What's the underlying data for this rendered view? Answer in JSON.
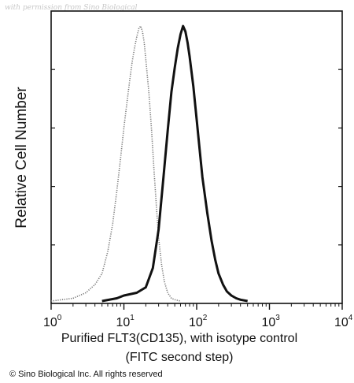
{
  "watermark": "with permission from Sino Biological",
  "copyright": "© Sino Biological Inc. All rights reserved",
  "chart_data": {
    "type": "line",
    "xscale": "log",
    "xlim": [
      1,
      10000
    ],
    "ylabel": "Relative Cell Number",
    "xlabel_line1": "Purified FLT3(CD135), with isotype control",
    "xlabel_line2": "(FITC second step)",
    "x_ticks": [
      {
        "base": "10",
        "exp": "0",
        "value": 1
      },
      {
        "base": "10",
        "exp": "1",
        "value": 10
      },
      {
        "base": "10",
        "exp": "2",
        "value": 100
      },
      {
        "base": "10",
        "exp": "3",
        "value": 1000
      },
      {
        "base": "10",
        "exp": "4",
        "value": 10000
      }
    ],
    "grid": false,
    "series": [
      {
        "style": "dotted",
        "color": "#777777",
        "x": [
          1,
          2,
          3,
          4,
          5,
          6,
          7,
          8,
          9,
          10,
          11,
          12,
          13,
          14,
          15,
          16,
          17,
          18,
          19,
          20,
          22,
          24,
          26,
          28,
          30,
          33,
          36,
          40,
          45,
          50,
          60
        ],
        "y": [
          0,
          1,
          3,
          6,
          10,
          18,
          28,
          40,
          52,
          63,
          72,
          80,
          87,
          92,
          96,
          99,
          100,
          98,
          94,
          88,
          76,
          62,
          47,
          34,
          23,
          13,
          7,
          3,
          1,
          0.5,
          0
        ]
      },
      {
        "style": "solid",
        "color": "#111111",
        "x": [
          5,
          8,
          10,
          15,
          20,
          25,
          30,
          35,
          40,
          45,
          50,
          55,
          60,
          65,
          70,
          75,
          80,
          90,
          100,
          110,
          120,
          140,
          160,
          180,
          200,
          230,
          260,
          300,
          350,
          400,
          500
        ],
        "y": [
          0,
          1,
          2,
          3,
          5,
          12,
          26,
          45,
          62,
          76,
          85,
          92,
          97,
          100,
          98,
          94,
          89,
          78,
          66,
          55,
          45,
          32,
          22,
          15,
          10,
          6,
          3.5,
          2,
          1,
          0.5,
          0
        ]
      }
    ]
  }
}
